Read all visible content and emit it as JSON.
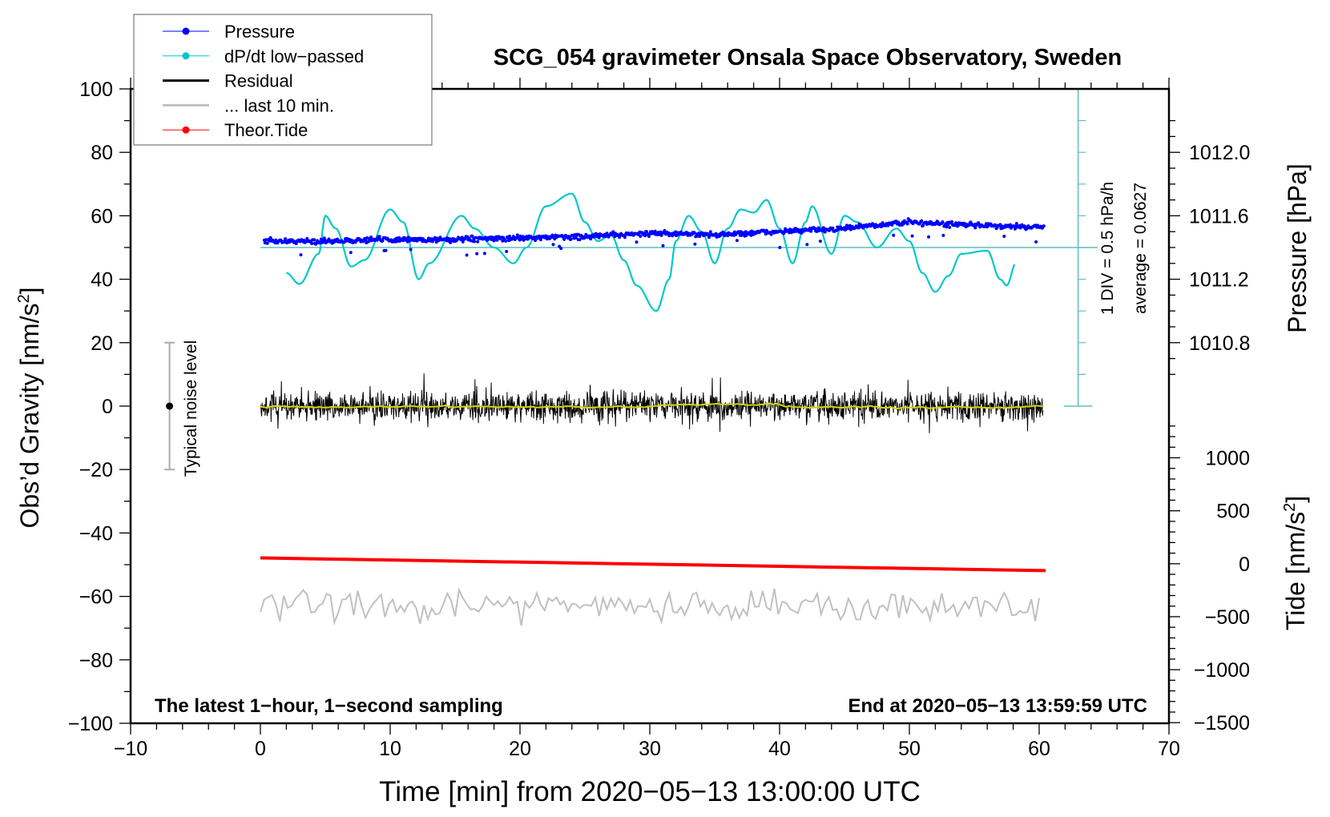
{
  "chart_data": {
    "type": "line",
    "title": "SCG_054 gravimeter Onsala Space Observatory, Sweden",
    "xlabel": "Time [min] from 2020−05−13 13:00:00 UTC",
    "ylabel": "Obs’d Gravity [nm/s",
    "ylabel_sup": "2",
    "ylabel_end": "]",
    "y2label": "Pressure [hPa]",
    "y3label": "Tide [nm/s",
    "y3label_sup": "2",
    "y3label_end": "]",
    "xlim": [
      -10,
      70
    ],
    "ylim": [
      -100,
      100
    ],
    "x_ticks": [
      "−10",
      "0",
      "10",
      "20",
      "30",
      "40",
      "50",
      "60",
      "70"
    ],
    "x_tick_values": [
      -10,
      0,
      10,
      20,
      30,
      40,
      50,
      60,
      70
    ],
    "y_ticks": [
      "100",
      "80",
      "60",
      "40",
      "20",
      "0",
      "−20",
      "−40",
      "−60",
      "−80",
      "−100"
    ],
    "y_tick_values": [
      100,
      80,
      60,
      40,
      20,
      0,
      -20,
      -40,
      -60,
      -80,
      -100
    ],
    "pressure_ticks": [
      "1012.0",
      "1011.6",
      "1011.2",
      "1010.8"
    ],
    "pressure_tick_values": [
      1012.0,
      1011.6,
      1011.2,
      1010.8
    ],
    "tide_ticks": [
      "1000",
      "500",
      "0",
      "−500",
      "−1000",
      "−1500"
    ],
    "tide_tick_values": [
      1000,
      500,
      0,
      -500,
      -1000,
      -1500
    ],
    "grid": false,
    "legend_placement": "top-left",
    "legend": [
      {
        "label": "Pressure",
        "color": "#0000ff",
        "marker": "dot"
      },
      {
        "label": "dP/dt low−passed",
        "color": "#00c8c8",
        "marker": "dot"
      },
      {
        "label": "Residual",
        "color": "#000000",
        "marker": "none"
      },
      {
        "label": "... last 10 min.",
        "color": "#c0c0c0",
        "marker": "none"
      },
      {
        "label": "Theor.Tide",
        "color": "#ff0000",
        "marker": "dot"
      }
    ],
    "annotations": {
      "bottom_left": "The latest 1−hour, 1−second sampling",
      "bottom_right": "End at 2020−05−13 13:59:59 UTC",
      "noise_label": "Typical noise level",
      "div_label": "1 DIV = 0.5 hPa/h",
      "average_label": "average = 0.0627"
    },
    "series": [
      {
        "name": "Pressure",
        "unit": "hPa",
        "x": [
          0,
          5,
          10,
          15,
          20,
          25,
          30,
          35,
          40,
          45,
          50,
          55,
          60
        ],
        "values": [
          1011.44,
          1011.44,
          1011.45,
          1011.45,
          1011.46,
          1011.47,
          1011.49,
          1011.48,
          1011.5,
          1011.52,
          1011.56,
          1011.54,
          1011.53
        ]
      },
      {
        "name": "dP/dt low-passed",
        "unit": "gravity-axis units (baseline 50)",
        "x": [
          2,
          3,
          4.5,
          5,
          5.8,
          7,
          8,
          10,
          11,
          12.2,
          13,
          15.5,
          16.5,
          18,
          19.5,
          20.5,
          22,
          24,
          25,
          26,
          27,
          28,
          29,
          30.5,
          31.5,
          32,
          33,
          34,
          35,
          36,
          37,
          38,
          39,
          40,
          41,
          42,
          42.5,
          44,
          45,
          46,
          47.5,
          49,
          50,
          51,
          52,
          53,
          54,
          56,
          57,
          57.5,
          58.2
        ],
        "values": [
          42,
          38.5,
          48,
          60,
          56,
          44,
          46,
          62,
          58,
          40,
          45,
          60,
          56,
          50,
          45,
          50,
          63,
          67,
          58,
          52,
          54,
          46,
          38,
          30,
          40,
          52,
          60,
          55,
          45,
          56,
          62,
          61,
          65,
          56,
          45,
          58,
          63,
          48,
          60,
          58,
          50,
          56,
          52,
          42,
          36,
          41,
          48,
          49,
          40,
          38,
          45
        ]
      },
      {
        "name": "Residual",
        "unit": "nm/s2",
        "mean": 0,
        "peak_amplitude": 13,
        "x_range": [
          0,
          60
        ]
      },
      {
        "name": "... last 10 min.",
        "unit": "gravity-axis units",
        "center": -63,
        "range": [
          -75,
          -52
        ],
        "x_range": [
          0,
          60
        ]
      },
      {
        "name": "Theor.Tide",
        "unit": "nm/s2",
        "x": [
          0,
          60
        ],
        "values": [
          55,
          -65
        ]
      }
    ]
  }
}
